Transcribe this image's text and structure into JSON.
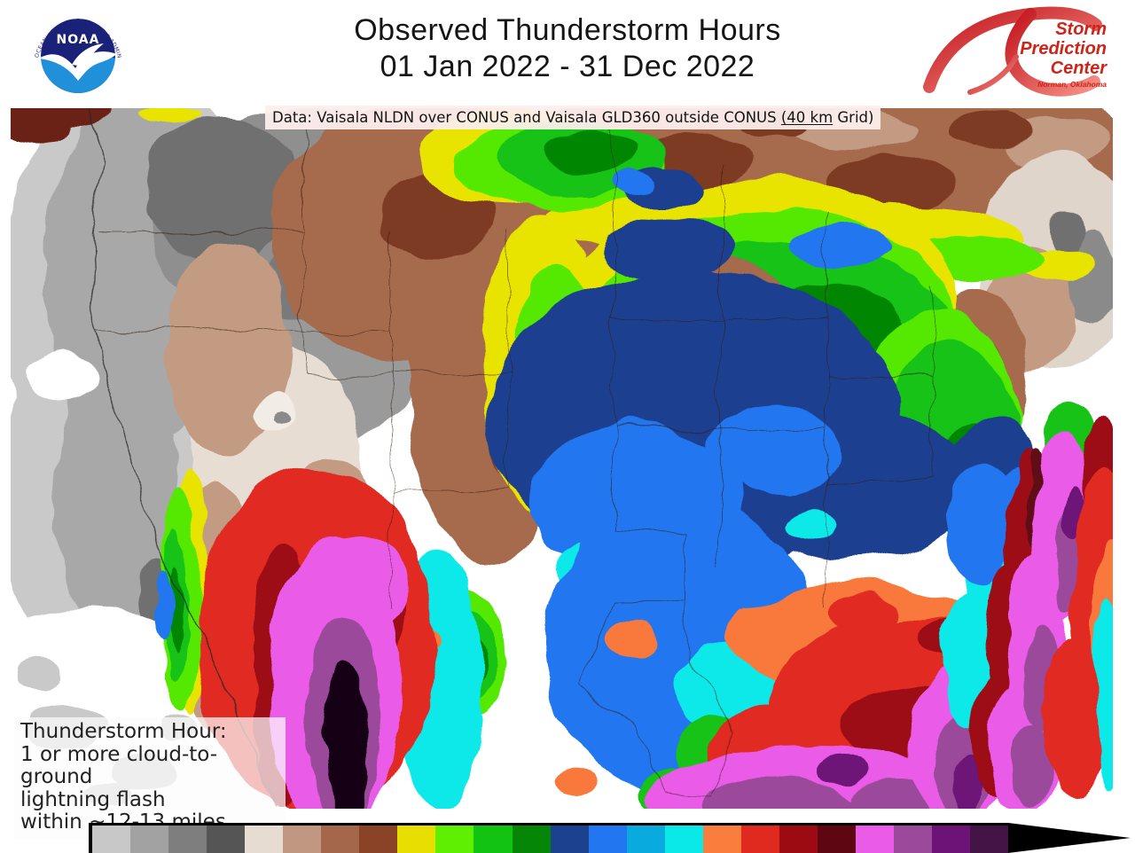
{
  "header": {
    "title_line1": "Observed Thunderstorm Hours",
    "title_line2": "01 Jan 2022 - 31 Dec 2022",
    "noaa": {
      "name": "NOAA",
      "ring_top": "NATIONAL OCEANIC AND ATMOSPHERIC ADMINISTRATION",
      "ring_bottom": "U.S. DEPARTMENT OF COMMERCE",
      "navy": "#1a2178",
      "light_blue": "#1f90d9"
    },
    "spc": {
      "line1": "Storm",
      "line2": "Prediction",
      "line3": "Center",
      "location": "Norman, Oklahoma",
      "red": "#cf2318"
    }
  },
  "map": {
    "caption": {
      "before": "Data: Vaisala NLDN over CONUS and Vaisala GLD360 outside CONUS ",
      "underlined": "(40 km",
      "after": " Grid)"
    },
    "note": [
      "Thunderstorm Hour:",
      "1 or more cloud-to-ground",
      "lightning flash",
      "within ~12-13 miles"
    ]
  },
  "chart_data": {
    "type": "heatmap",
    "title": "Observed Thunderstorm Hours",
    "period": "01 Jan 2022 - 31 Dec 2022",
    "region": "Contiguous United States, southern Canada, northern Mexico and adjacent oceans",
    "units": "thunderstorm hours (40 km grid)",
    "colorbar": {
      "orientation": "horizontal",
      "labels_visible": false,
      "meaning": "lowest (gray/white) to highest (dark purple/black arrow) thunderstorm hours",
      "colors": [
        "#c8c8c8",
        "#a2a2a2",
        "#7e7e7e",
        "#555555",
        "#e6dcd2",
        "#c09781",
        "#a5674c",
        "#8a4326",
        "#e6df00",
        "#5ef000",
        "#12c312",
        "#068606",
        "#1c418f",
        "#2277f0",
        "#09aade",
        "#0ae8e8",
        "#f97e3d",
        "#e02a20",
        "#9c0a12",
        "#5e0712",
        "#ea5ce8",
        "#9b4a9b",
        "#6d1277",
        "#451447"
      ],
      "arrow_color": "#000000"
    },
    "pattern_by_region": [
      {
        "region": "Pacific coast and offshore",
        "relative_level": "lowest",
        "palette": "white to light gray"
      },
      {
        "region": "Great Basin / interior Northwest",
        "relative_level": "very low",
        "palette": "cream, tan, brown"
      },
      {
        "region": "Northern tier, Great Lakes rim, New England",
        "relative_level": "low",
        "palette": "brown and yellow"
      },
      {
        "region": "Upper Midwest and interior Northeast",
        "relative_level": "moderate",
        "palette": "green"
      },
      {
        "region": "Central Plains to Ohio / Tennessee Valley",
        "relative_level": "moderately high",
        "palette": "dark blue, blue"
      },
      {
        "region": "Southern Plains and Texas",
        "relative_level": "high",
        "palette": "blue and cyan"
      },
      {
        "region": "Deep South / Gulf states",
        "relative_level": "very high",
        "palette": "orange and red"
      },
      {
        "region": "Gulf Coast, Florida and Gulf Stream offshore band",
        "relative_level": "extreme",
        "palette": "magenta and purple"
      },
      {
        "region": "Sierra Madre, northwest Mexico",
        "relative_level": "maximum",
        "palette": "purple to black"
      }
    ]
  }
}
